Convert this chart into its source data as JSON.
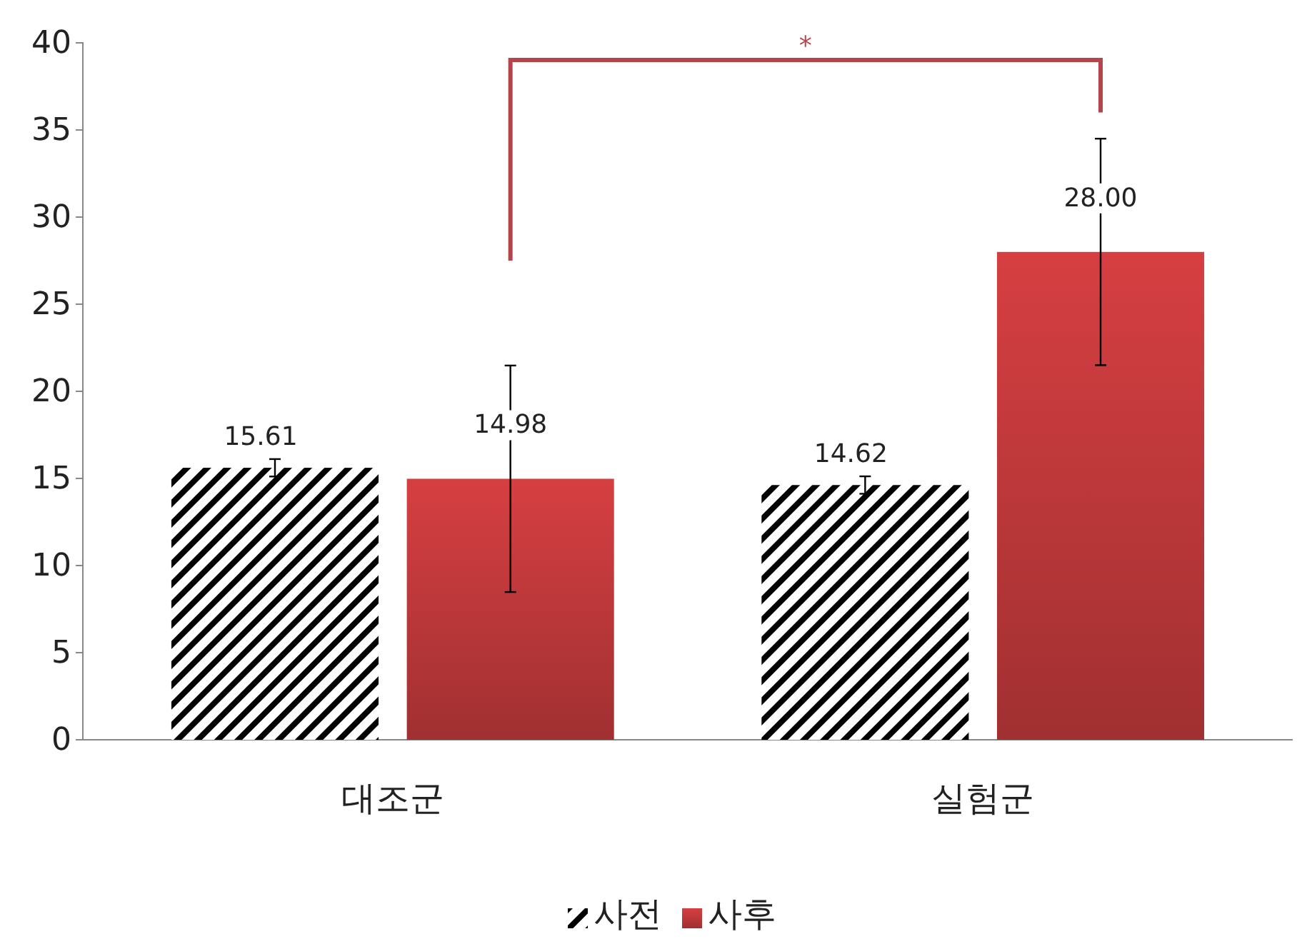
{
  "chart_data": {
    "type": "bar",
    "categories": [
      "대조군",
      "실험군"
    ],
    "series": [
      {
        "name": "사전",
        "color": "#000000",
        "values": [
          15.61,
          14.62
        ],
        "errors": [
          0.5,
          0.5
        ],
        "value_labels": [
          "15.61",
          "14.62"
        ]
      },
      {
        "name": "사후",
        "color": "#c0393b",
        "values": [
          14.98,
          28.0
        ],
        "errors": [
          6.5,
          6.5
        ],
        "value_labels": [
          "14.98",
          "28.00"
        ]
      }
    ],
    "ylim": [
      0,
      40
    ],
    "yticks": [
      0,
      5,
      10,
      15,
      20,
      25,
      30,
      35,
      40
    ],
    "grid": false,
    "legend": "bottom",
    "annotations": [
      "*"
    ]
  }
}
